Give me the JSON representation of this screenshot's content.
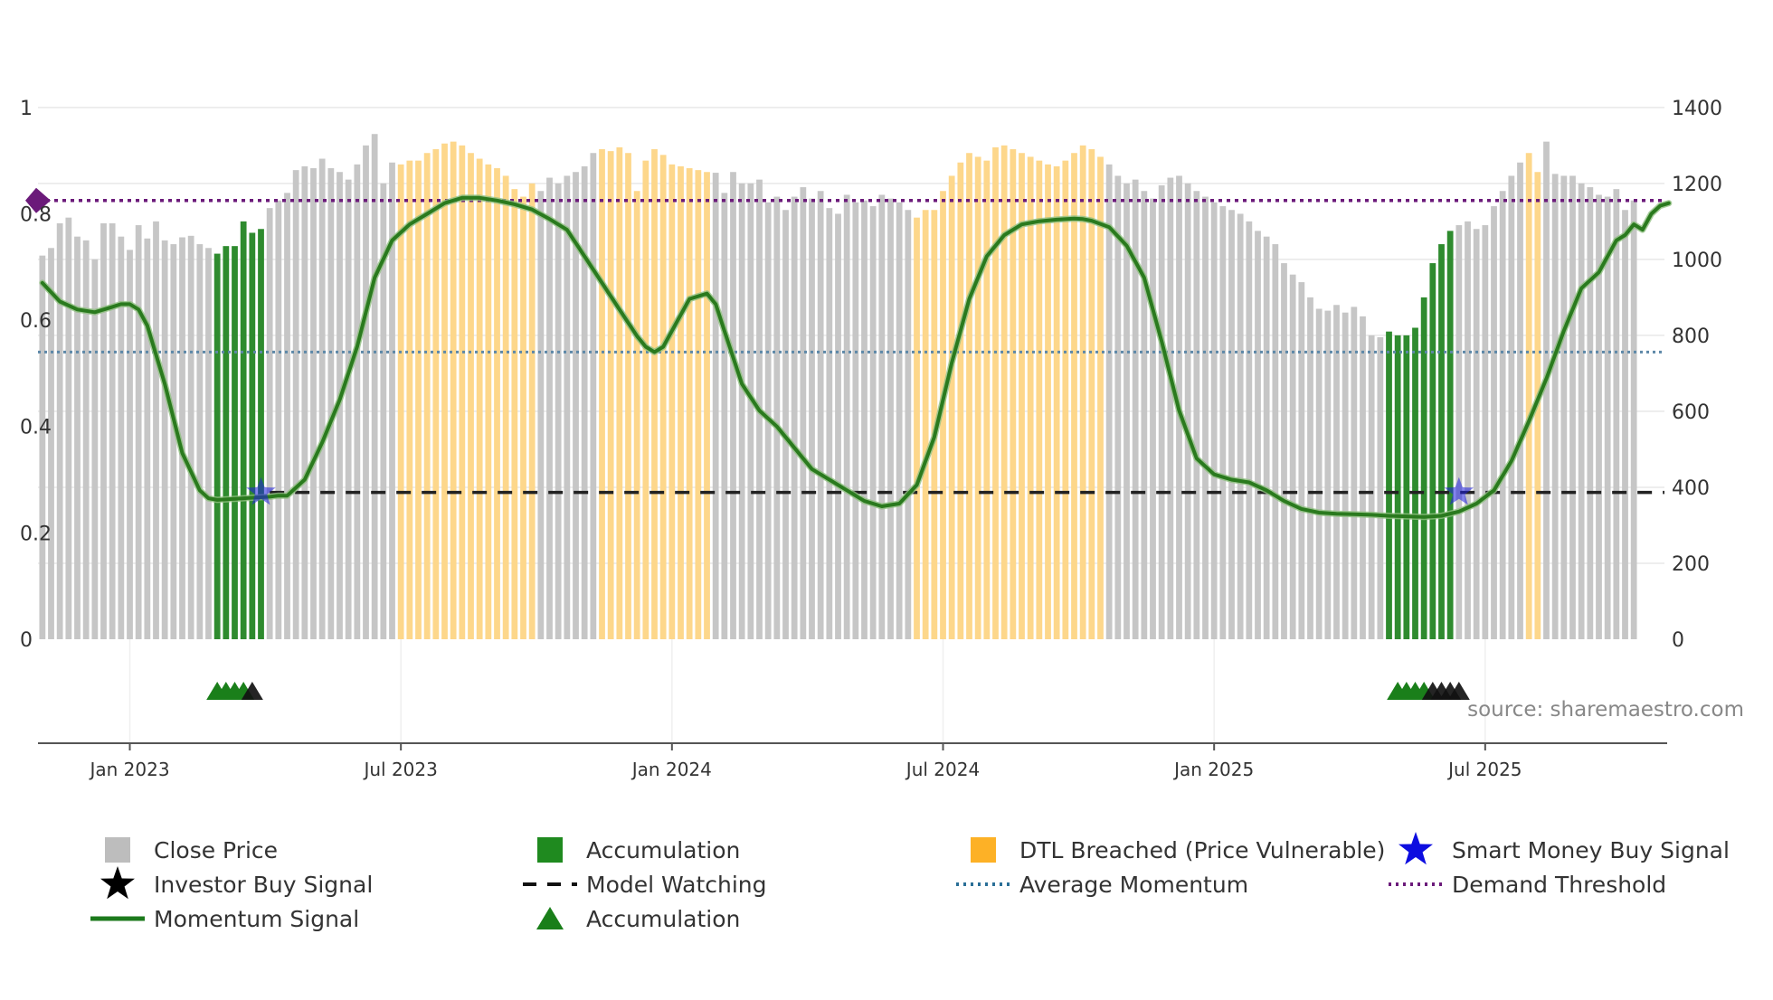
{
  "chart_data": {
    "type": "bar",
    "title": "",
    "xlabel": "",
    "source": "source: sharemaestro.com",
    "left_axis": {
      "range": [
        0,
        1.1
      ],
      "ticks": [
        0,
        0.2,
        0.4,
        0.6,
        0.8,
        1
      ],
      "tick_labels": [
        "0",
        "0.2",
        "0.4",
        "0.6",
        "0.8",
        "1"
      ]
    },
    "right_axis": {
      "range": [
        0,
        1400
      ],
      "ticks": [
        0,
        200,
        400,
        600,
        800,
        1000,
        1200,
        1400
      ],
      "tick_labels": [
        "0",
        "200",
        "400",
        "600",
        "800",
        "1000",
        "1200",
        "1400"
      ]
    },
    "x_ticks": [
      {
        "week": 10,
        "label": "Jan 2023"
      },
      {
        "week": 41,
        "label": "Jul 2023"
      },
      {
        "week": 72,
        "label": "Jan 2024"
      },
      {
        "week": 103,
        "label": "Jul 2024"
      },
      {
        "week": 134,
        "label": "Jan 2025"
      },
      {
        "week": 165,
        "label": "Jul 2025"
      }
    ],
    "weeks": 186,
    "close_price": [
      1010,
      1030,
      1095,
      1110,
      1060,
      1050,
      1000,
      1095,
      1095,
      1060,
      1025,
      1090,
      1055,
      1100,
      1050,
      1040,
      1058,
      1062,
      1040,
      1030,
      1015,
      1035,
      1035,
      1100,
      1070,
      1080,
      1135,
      1155,
      1175,
      1235,
      1245,
      1240,
      1265,
      1240,
      1230,
      1210,
      1250,
      1300,
      1330,
      1200,
      1255,
      1250,
      1260,
      1260,
      1280,
      1290,
      1305,
      1310,
      1300,
      1280,
      1265,
      1250,
      1240,
      1220,
      1185,
      1165,
      1200,
      1180,
      1215,
      1200,
      1220,
      1230,
      1245,
      1280,
      1290,
      1285,
      1295,
      1280,
      1180,
      1260,
      1290,
      1275,
      1250,
      1245,
      1240,
      1235,
      1230,
      1228,
      1175,
      1230,
      1200,
      1200,
      1210,
      1150,
      1165,
      1130,
      1165,
      1190,
      1160,
      1180,
      1135,
      1120,
      1170,
      1150,
      1155,
      1140,
      1170,
      1160,
      1150,
      1130,
      1110,
      1130,
      1130,
      1180,
      1220,
      1255,
      1280,
      1270,
      1260,
      1295,
      1300,
      1290,
      1280,
      1270,
      1260,
      1250,
      1245,
      1260,
      1280,
      1300,
      1290,
      1270,
      1250,
      1220,
      1200,
      1210,
      1180,
      1160,
      1195,
      1215,
      1220,
      1200,
      1180,
      1165,
      1150,
      1140,
      1130,
      1120,
      1100,
      1075,
      1060,
      1040,
      990,
      960,
      940,
      900,
      870,
      865,
      880,
      860,
      875,
      850,
      800,
      795,
      810,
      800,
      800,
      820,
      900,
      990,
      1040,
      1075,
      1090,
      1100,
      1080,
      1090,
      1140,
      1180,
      1220,
      1255,
      1280,
      1230,
      1310,
      1225,
      1220,
      1220,
      1200,
      1190,
      1170,
      1165,
      1185,
      1130,
      1155
    ],
    "bar_category_ranges": [
      {
        "category": "Accumulation",
        "from": 20,
        "to": 25
      },
      {
        "category": "DTL Breached",
        "from": 41,
        "to": 56
      },
      {
        "category": "DTL Breached",
        "from": 64,
        "to": 70
      },
      {
        "category": "DTL Breached",
        "from": 71,
        "to": 76
      },
      {
        "category": "DTL Breached",
        "from": 100,
        "to": 121
      },
      {
        "category": "Accumulation",
        "from": 154,
        "to": 161
      },
      {
        "category": "DTL Breached",
        "from": 170,
        "to": 171
      }
    ],
    "momentum_signal": [
      [
        0,
        0.67
      ],
      [
        2,
        0.635
      ],
      [
        4,
        0.62
      ],
      [
        6,
        0.615
      ],
      [
        8,
        0.625
      ],
      [
        9,
        0.63
      ],
      [
        10,
        0.63
      ],
      [
        11,
        0.62
      ],
      [
        12,
        0.59
      ],
      [
        14,
        0.48
      ],
      [
        16,
        0.35
      ],
      [
        18,
        0.28
      ],
      [
        19,
        0.265
      ],
      [
        20,
        0.262
      ],
      [
        22,
        0.264
      ],
      [
        24,
        0.266
      ],
      [
        26,
        0.268
      ],
      [
        27,
        0.27
      ],
      [
        28,
        0.27
      ],
      [
        30,
        0.3
      ],
      [
        32,
        0.37
      ],
      [
        34,
        0.45
      ],
      [
        36,
        0.55
      ],
      [
        38,
        0.68
      ],
      [
        40,
        0.75
      ],
      [
        42,
        0.78
      ],
      [
        44,
        0.8
      ],
      [
        46,
        0.82
      ],
      [
        48,
        0.83
      ],
      [
        50,
        0.83
      ],
      [
        52,
        0.825
      ],
      [
        54,
        0.818
      ],
      [
        56,
        0.808
      ],
      [
        58,
        0.79
      ],
      [
        60,
        0.77
      ],
      [
        62,
        0.72
      ],
      [
        64,
        0.67
      ],
      [
        66,
        0.62
      ],
      [
        68,
        0.57
      ],
      [
        69,
        0.55
      ],
      [
        70,
        0.54
      ],
      [
        71,
        0.55
      ],
      [
        72,
        0.58
      ],
      [
        74,
        0.64
      ],
      [
        76,
        0.65
      ],
      [
        77,
        0.63
      ],
      [
        78,
        0.58
      ],
      [
        80,
        0.48
      ],
      [
        82,
        0.43
      ],
      [
        84,
        0.4
      ],
      [
        86,
        0.36
      ],
      [
        88,
        0.32
      ],
      [
        90,
        0.3
      ],
      [
        92,
        0.28
      ],
      [
        94,
        0.26
      ],
      [
        96,
        0.25
      ],
      [
        98,
        0.255
      ],
      [
        100,
        0.29
      ],
      [
        102,
        0.38
      ],
      [
        104,
        0.52
      ],
      [
        106,
        0.64
      ],
      [
        108,
        0.72
      ],
      [
        110,
        0.76
      ],
      [
        112,
        0.78
      ],
      [
        114,
        0.786
      ],
      [
        116,
        0.789
      ],
      [
        118,
        0.791
      ],
      [
        119,
        0.79
      ],
      [
        120,
        0.787
      ],
      [
        122,
        0.775
      ],
      [
        124,
        0.74
      ],
      [
        126,
        0.68
      ],
      [
        128,
        0.56
      ],
      [
        130,
        0.43
      ],
      [
        132,
        0.34
      ],
      [
        134,
        0.31
      ],
      [
        136,
        0.3
      ],
      [
        138,
        0.295
      ],
      [
        140,
        0.28
      ],
      [
        142,
        0.26
      ],
      [
        144,
        0.245
      ],
      [
        146,
        0.238
      ],
      [
        148,
        0.236
      ],
      [
        150,
        0.235
      ],
      [
        152,
        0.234
      ],
      [
        154,
        0.232
      ],
      [
        156,
        0.231
      ],
      [
        158,
        0.23
      ],
      [
        160,
        0.232
      ],
      [
        162,
        0.24
      ],
      [
        164,
        0.255
      ],
      [
        166,
        0.28
      ],
      [
        168,
        0.335
      ],
      [
        170,
        0.41
      ],
      [
        172,
        0.49
      ],
      [
        174,
        0.58
      ],
      [
        176,
        0.66
      ],
      [
        178,
        0.69
      ],
      [
        180,
        0.75
      ],
      [
        181,
        0.76
      ],
      [
        182,
        0.78
      ],
      [
        183,
        0.77
      ],
      [
        184,
        0.8
      ],
      [
        185,
        0.815
      ],
      [
        186,
        0.82
      ]
    ],
    "demand_threshold": 0.825,
    "average_momentum": 0.54,
    "model_watching": 0.276,
    "model_watching_start_week": 26,
    "smart_money_buy_weeks": [
      25,
      162
    ],
    "accumulation_marker_weeks": [
      20,
      21,
      22,
      23,
      155,
      156,
      157,
      158
    ],
    "investor_buy_marker_weeks": [
      24,
      159,
      160,
      161,
      162
    ],
    "colors": {
      "close_price": "#c6c6c6",
      "accumulation": "#2e8b2e",
      "dtl_breached": "#fdd78b",
      "momentum": "#2a7a1e",
      "momentum_light": "#8fbf7f",
      "demand_threshold": "#6b1a7a",
      "average_momentum": "#5d88a8",
      "model_watching": "#222222",
      "smart_money": "#1f1fe0",
      "grid": "#e8e8e8",
      "text": "#333333",
      "source": "#888888"
    },
    "legend": [
      {
        "key": "close",
        "label": "Close Price",
        "marker": "square",
        "color": "#bdbdbd"
      },
      {
        "key": "accum_bar",
        "label": "Accumulation",
        "marker": "square",
        "color": "#1f8a1f"
      },
      {
        "key": "dtl",
        "label": "DTL Breached (Price Vulnerable)",
        "marker": "square",
        "color": "#fdb126"
      },
      {
        "key": "smart",
        "label": "Smart Money Buy Signal",
        "marker": "star",
        "color": "#0d0de0"
      },
      {
        "key": "investor",
        "label": "Investor Buy Signal",
        "marker": "star",
        "color": "#000000"
      },
      {
        "key": "watching",
        "label": "Model Watching",
        "marker": "dash",
        "color": "#111111"
      },
      {
        "key": "avgmom",
        "label": "Average Momentum",
        "marker": "dot",
        "color": "#2a6f97"
      },
      {
        "key": "demand",
        "label": "Demand Threshold",
        "marker": "dot",
        "color": "#6b1a7a"
      },
      {
        "key": "momentum",
        "label": "Momentum Signal",
        "marker": "line",
        "color": "#1c7a1c"
      },
      {
        "key": "accum_tri",
        "label": "Accumulation",
        "marker": "triangle",
        "color": "#1a7f1a"
      }
    ]
  }
}
